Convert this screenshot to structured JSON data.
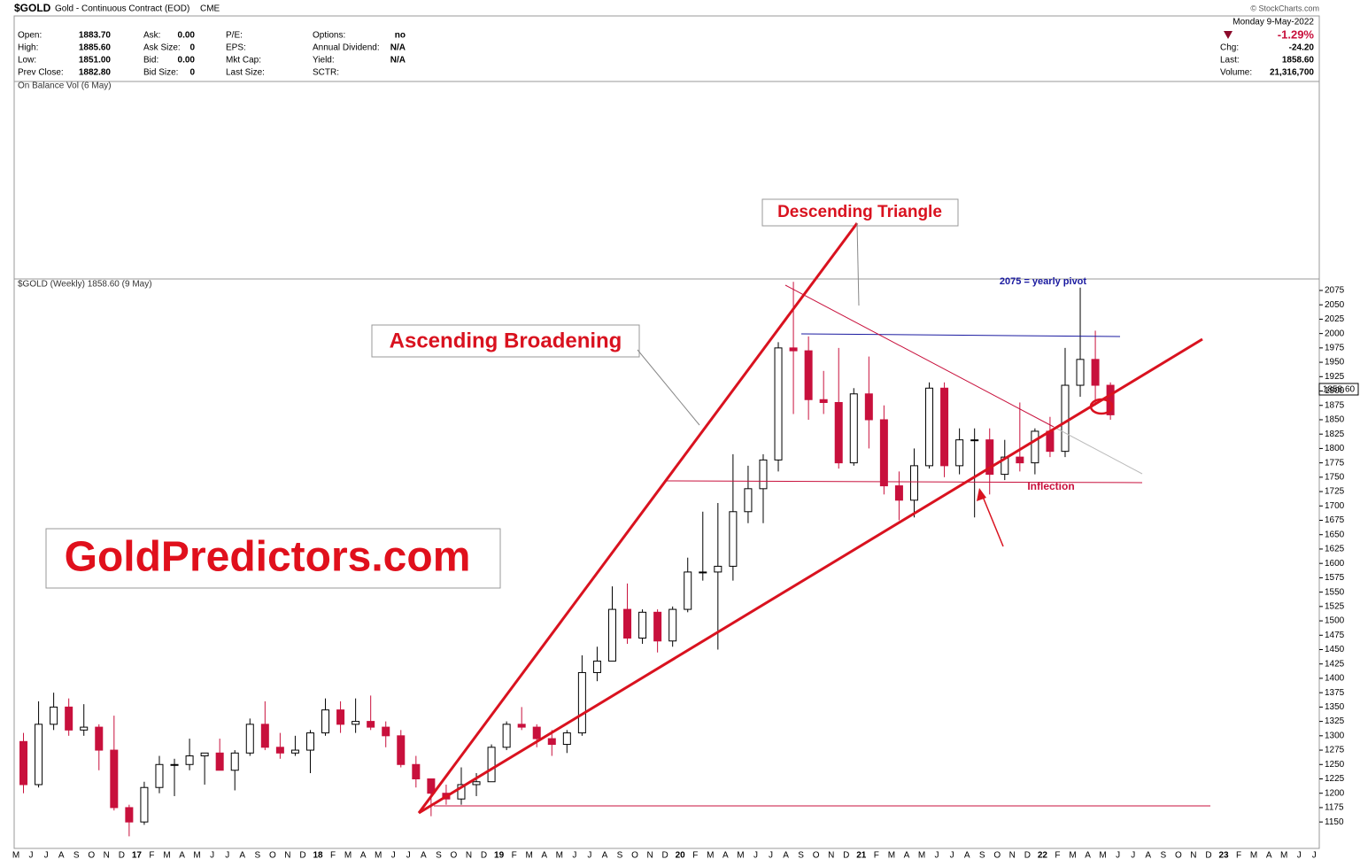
{
  "header": {
    "symbol": "$GOLD",
    "name": "Gold - Continuous Contract (EOD)",
    "exchange": "CME",
    "columns": [
      [
        [
          "Open:",
          "1883.70"
        ],
        [
          "High:",
          "1885.60"
        ],
        [
          "Low:",
          "1851.00"
        ],
        [
          "Prev Close:",
          "1882.80"
        ]
      ],
      [
        [
          "Ask:",
          "0.00"
        ],
        [
          "Ask Size:",
          "0"
        ],
        [
          "Bid:",
          "0.00"
        ],
        [
          "Bid Size:",
          "0"
        ]
      ],
      [
        [
          "P/E:",
          ""
        ],
        [
          "EPS:",
          ""
        ],
        [
          "Mkt Cap:",
          ""
        ],
        [
          "Last Size:",
          ""
        ]
      ],
      [
        [
          "Options:",
          "no"
        ],
        [
          "Annual Dividend:",
          "N/A"
        ],
        [
          "Yield:",
          "N/A"
        ],
        [
          "SCTR:",
          ""
        ]
      ]
    ],
    "date": "Monday  9-May-2022",
    "change_pct": "-1.29%",
    "right": [
      [
        "Chg:",
        "-24.20"
      ],
      [
        "Last:",
        "1858.60"
      ],
      [
        "Volume:",
        "21,316,700"
      ]
    ],
    "credit": "© StockCharts.com",
    "obv_label": "On Balance Vol (6 May)"
  },
  "chart_data": {
    "type": "candlestick",
    "title": "$GOLD (Weekly) 1858.60 (9 May)",
    "last_label": "1858.60",
    "categories": [
      "M",
      "J",
      "J",
      "A",
      "S",
      "O",
      "N",
      "D",
      "17",
      "F",
      "M",
      "A",
      "M",
      "J",
      "J",
      "A",
      "S",
      "O",
      "N",
      "D",
      "18",
      "F",
      "M",
      "A",
      "M",
      "J",
      "J",
      "A",
      "S",
      "O",
      "N",
      "D",
      "19",
      "F",
      "M",
      "A",
      "M",
      "J",
      "J",
      "A",
      "S",
      "O",
      "N",
      "D",
      "20",
      "F",
      "M",
      "A",
      "M",
      "J",
      "J",
      "A",
      "S",
      "O",
      "N",
      "D",
      "21",
      "F",
      "M",
      "A",
      "M",
      "J",
      "J",
      "A",
      "S",
      "O",
      "N",
      "D",
      "22",
      "F",
      "M",
      "A",
      "M",
      "J",
      "J",
      "A",
      "S",
      "O",
      "N",
      "D",
      "23",
      "F",
      "M",
      "A",
      "M",
      "J",
      "J"
    ],
    "open": [
      1290,
      1215,
      1320,
      1350,
      1310,
      1315,
      1275,
      1175,
      1150,
      1210,
      1250,
      1250,
      1265,
      1270,
      1240,
      1270,
      1320,
      1280,
      1270,
      1275,
      1305,
      1345,
      1320,
      1325,
      1315,
      1300,
      1250,
      1225,
      1200,
      1190,
      1215,
      1220,
      1280,
      1320,
      1315,
      1295,
      1285,
      1305,
      1410,
      1430,
      1520,
      1470,
      1515,
      1465,
      1520,
      1585,
      1585,
      1595,
      1690,
      1730,
      1780,
      1975,
      1970,
      1885,
      1880,
      1775,
      1895,
      1850,
      1735,
      1710,
      1770,
      1905,
      1770,
      1815,
      1815,
      1755,
      1785,
      1775,
      1830,
      1795,
      1910,
      1955,
      1910,
      null,
      null,
      null,
      null,
      null,
      null,
      null,
      null,
      null,
      null,
      null,
      null,
      null,
      null
    ],
    "high": [
      1305,
      1360,
      1375,
      1365,
      1355,
      1320,
      1335,
      1180,
      1220,
      1265,
      1260,
      1295,
      1270,
      1295,
      1275,
      1330,
      1360,
      1305,
      1300,
      1310,
      1365,
      1360,
      1365,
      1370,
      1325,
      1310,
      1265,
      1220,
      1215,
      1245,
      1235,
      1285,
      1325,
      1350,
      1320,
      1310,
      1310,
      1440,
      1455,
      1560,
      1565,
      1520,
      1520,
      1525,
      1610,
      1690,
      1705,
      1790,
      1770,
      1790,
      1985,
      2090,
      1995,
      1935,
      1975,
      1905,
      1960,
      1875,
      1760,
      1800,
      1915,
      1915,
      1835,
      1835,
      1835,
      1815,
      1880,
      1835,
      1855,
      1975,
      2080,
      2005,
      1915,
      null,
      null,
      null,
      null,
      null,
      null,
      null,
      null,
      null,
      null,
      null,
      null,
      null,
      null
    ],
    "low": [
      1200,
      1210,
      1310,
      1300,
      1300,
      1240,
      1170,
      1125,
      1145,
      1200,
      1195,
      1240,
      1215,
      1240,
      1205,
      1265,
      1275,
      1260,
      1265,
      1235,
      1300,
      1305,
      1305,
      1310,
      1280,
      1245,
      1210,
      1160,
      1180,
      1180,
      1195,
      1220,
      1275,
      1310,
      1280,
      1265,
      1270,
      1300,
      1395,
      1430,
      1460,
      1460,
      1445,
      1455,
      1515,
      1570,
      1450,
      1570,
      1670,
      1670,
      1760,
      1860,
      1850,
      1860,
      1765,
      1770,
      1800,
      1720,
      1675,
      1680,
      1765,
      1750,
      1755,
      1680,
      1720,
      1745,
      1760,
      1755,
      1785,
      1785,
      1890,
      1875,
      1850,
      null,
      null,
      null,
      null,
      null,
      null,
      null,
      null,
      null,
      null,
      null,
      null,
      null,
      null
    ],
    "close": [
      1215,
      1320,
      1350,
      1310,
      1315,
      1275,
      1175,
      1150,
      1210,
      1250,
      1250,
      1265,
      1270,
      1240,
      1270,
      1320,
      1280,
      1270,
      1275,
      1305,
      1345,
      1320,
      1325,
      1315,
      1300,
      1250,
      1225,
      1200,
      1190,
      1215,
      1220,
      1280,
      1320,
      1315,
      1295,
      1285,
      1305,
      1410,
      1430,
      1520,
      1470,
      1515,
      1465,
      1520,
      1585,
      1585,
      1595,
      1690,
      1730,
      1780,
      1975,
      1970,
      1885,
      1880,
      1775,
      1895,
      1850,
      1735,
      1710,
      1770,
      1905,
      1770,
      1815,
      1815,
      1755,
      1785,
      1775,
      1830,
      1795,
      1910,
      1955,
      1910,
      1858.6,
      null,
      null,
      null,
      null,
      null,
      null,
      null,
      null,
      null,
      null,
      null,
      null,
      null,
      null
    ],
    "up_color": "#ffffff",
    "down_color": "#c8103c",
    "ylim": [
      1104,
      2095
    ],
    "yticks": [
      2075,
      2050,
      2025,
      2000,
      1975,
      1950,
      1925,
      1900,
      1875,
      1850,
      1825,
      1800,
      1775,
      1750,
      1725,
      1700,
      1675,
      1650,
      1625,
      1600,
      1575,
      1550,
      1525,
      1500,
      1475,
      1450,
      1425,
      1400,
      1375,
      1350,
      1325,
      1300,
      1275,
      1250,
      1225,
      1200,
      1175,
      1150
    ],
    "annotations": {
      "descending": "Descending Triangle",
      "ascending": "Ascending Broadening",
      "site": "GoldPredictors.com",
      "pivot": "2075 = yearly pivot",
      "inflection": "Inflection"
    }
  }
}
